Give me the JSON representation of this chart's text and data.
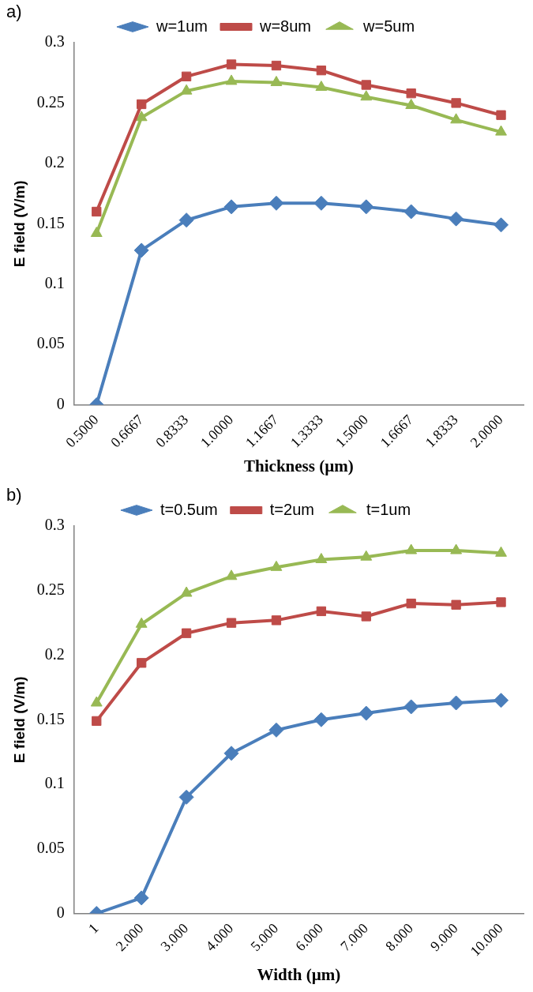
{
  "chart_data": [
    {
      "type": "line",
      "annotations": [
        "a)"
      ],
      "xlabel": "Thickness (µm)",
      "ylabel": "E field (V/m)",
      "categories": [
        "0.5000",
        "0.6667",
        "0.8333",
        "1.0000",
        "1.1667",
        "1.3333",
        "1.5000",
        "1.6667",
        "1.8333",
        "2.0000"
      ],
      "series": [
        {
          "name": "w=1um",
          "color": "#4a7ebb",
          "marker": "diamond",
          "values": [
            0,
            0.128,
            0.153,
            0.164,
            0.167,
            0.167,
            0.164,
            0.16,
            0.154,
            0.149
          ]
        },
        {
          "name": "w=8um",
          "color": "#be4b48",
          "marker": "square",
          "values": [
            0.16,
            0.249,
            0.272,
            0.282,
            0.281,
            0.277,
            0.265,
            0.258,
            0.25,
            0.24
          ]
        },
        {
          "name": "w=5um",
          "color": "#98b954",
          "marker": "triangle",
          "values": [
            0.142,
            0.238,
            0.26,
            0.268,
            0.267,
            0.263,
            0.255,
            0.248,
            0.236,
            0.226
          ]
        }
      ],
      "ylim": [
        0,
        0.3
      ],
      "yticks": [
        0,
        0.05,
        0.1,
        0.15,
        0.2,
        0.25,
        0.3
      ],
      "grid": false,
      "legend": "top",
      "line_style": "solid"
    },
    {
      "type": "line",
      "annotations": [
        "b)"
      ],
      "xlabel": "Width (µm)",
      "ylabel": "E field (V/m)",
      "categories": [
        "1",
        "2.000",
        "3.000",
        "4.000",
        "5.000",
        "6.000",
        "7.000",
        "8.000",
        "9.000",
        "10.000"
      ],
      "series": [
        {
          "name": "t=0.5um",
          "color": "#4a7ebb",
          "marker": "diamond",
          "values": [
            0,
            0.012,
            0.09,
            0.124,
            0.142,
            0.15,
            0.155,
            0.16,
            0.163,
            0.165
          ]
        },
        {
          "name": "t=2um",
          "color": "#be4b48",
          "marker": "square",
          "values": [
            0.149,
            0.194,
            0.217,
            0.225,
            0.227,
            0.234,
            0.23,
            0.24,
            0.239,
            0.241
          ]
        },
        {
          "name": "t=1um",
          "color": "#98b954",
          "marker": "triangle",
          "values": [
            0.163,
            0.224,
            0.248,
            0.261,
            0.268,
            0.274,
            0.276,
            0.281,
            0.281,
            0.279
          ]
        }
      ],
      "ylim": [
        0,
        0.3
      ],
      "yticks": [
        0,
        0.05,
        0.1,
        0.15,
        0.2,
        0.25,
        0.3
      ],
      "grid": false,
      "legend": "top",
      "line_style": "solid"
    }
  ]
}
